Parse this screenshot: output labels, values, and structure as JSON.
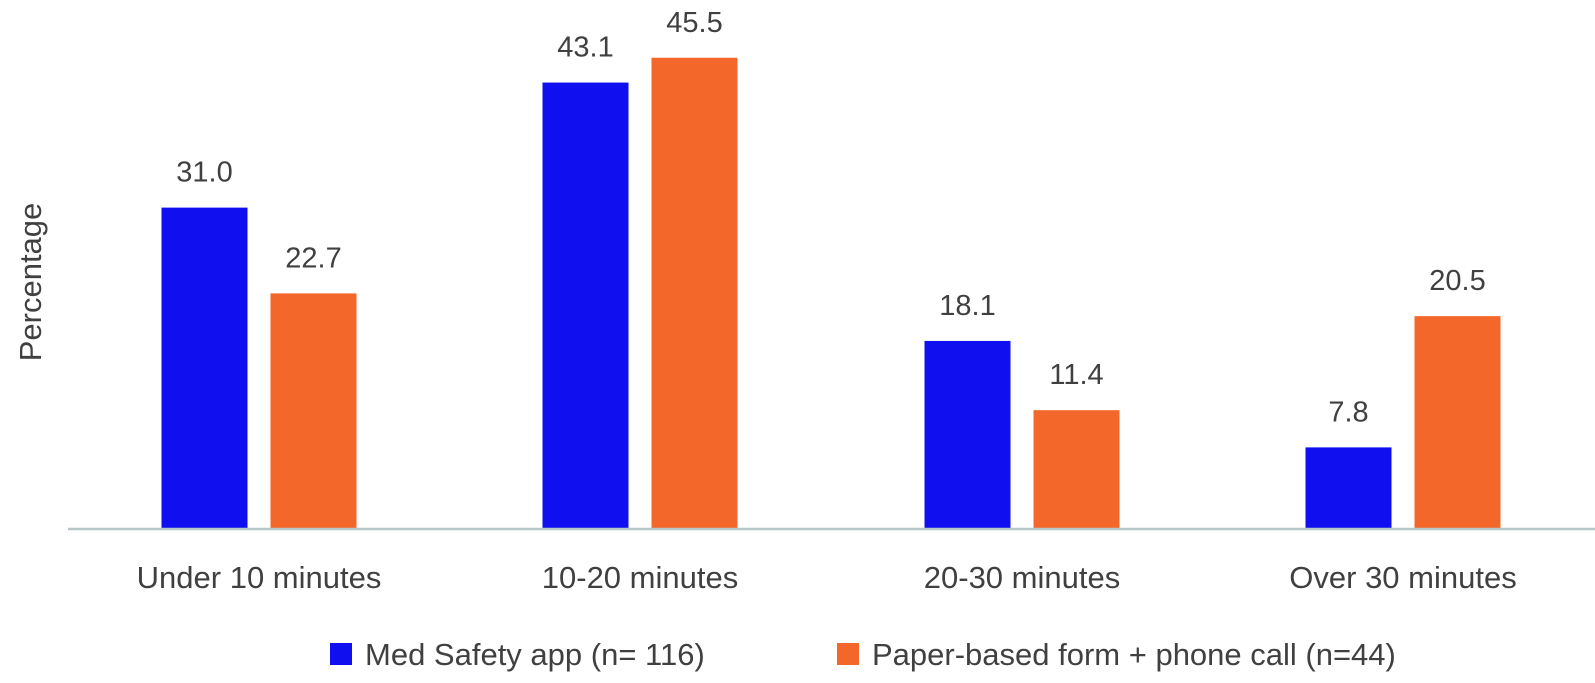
{
  "chart_data": {
    "type": "bar",
    "title": "",
    "xlabel": "",
    "ylabel": "Percentage",
    "categories": [
      "Under 10 minutes",
      "10-20 minutes",
      "20-30 minutes",
      "Over 30 minutes"
    ],
    "series": [
      {
        "name": "Med Safety app (n= 116)",
        "color": "#0f0ff0",
        "values": [
          31.0,
          43.1,
          18.1,
          7.8
        ],
        "labels": [
          "31.0",
          "43.1",
          "18.1",
          "7.8"
        ]
      },
      {
        "name": "Paper-based form + phone call (n=44)",
        "color": "#f4672a",
        "values": [
          22.7,
          45.5,
          11.4,
          20.5
        ],
        "labels": [
          "22.7",
          "45.5",
          "11.4",
          "20.5"
        ]
      }
    ],
    "ylim": [
      0,
      50
    ],
    "grid": false,
    "legend": "bottom-center",
    "axis_color": "#b7c7c7"
  }
}
